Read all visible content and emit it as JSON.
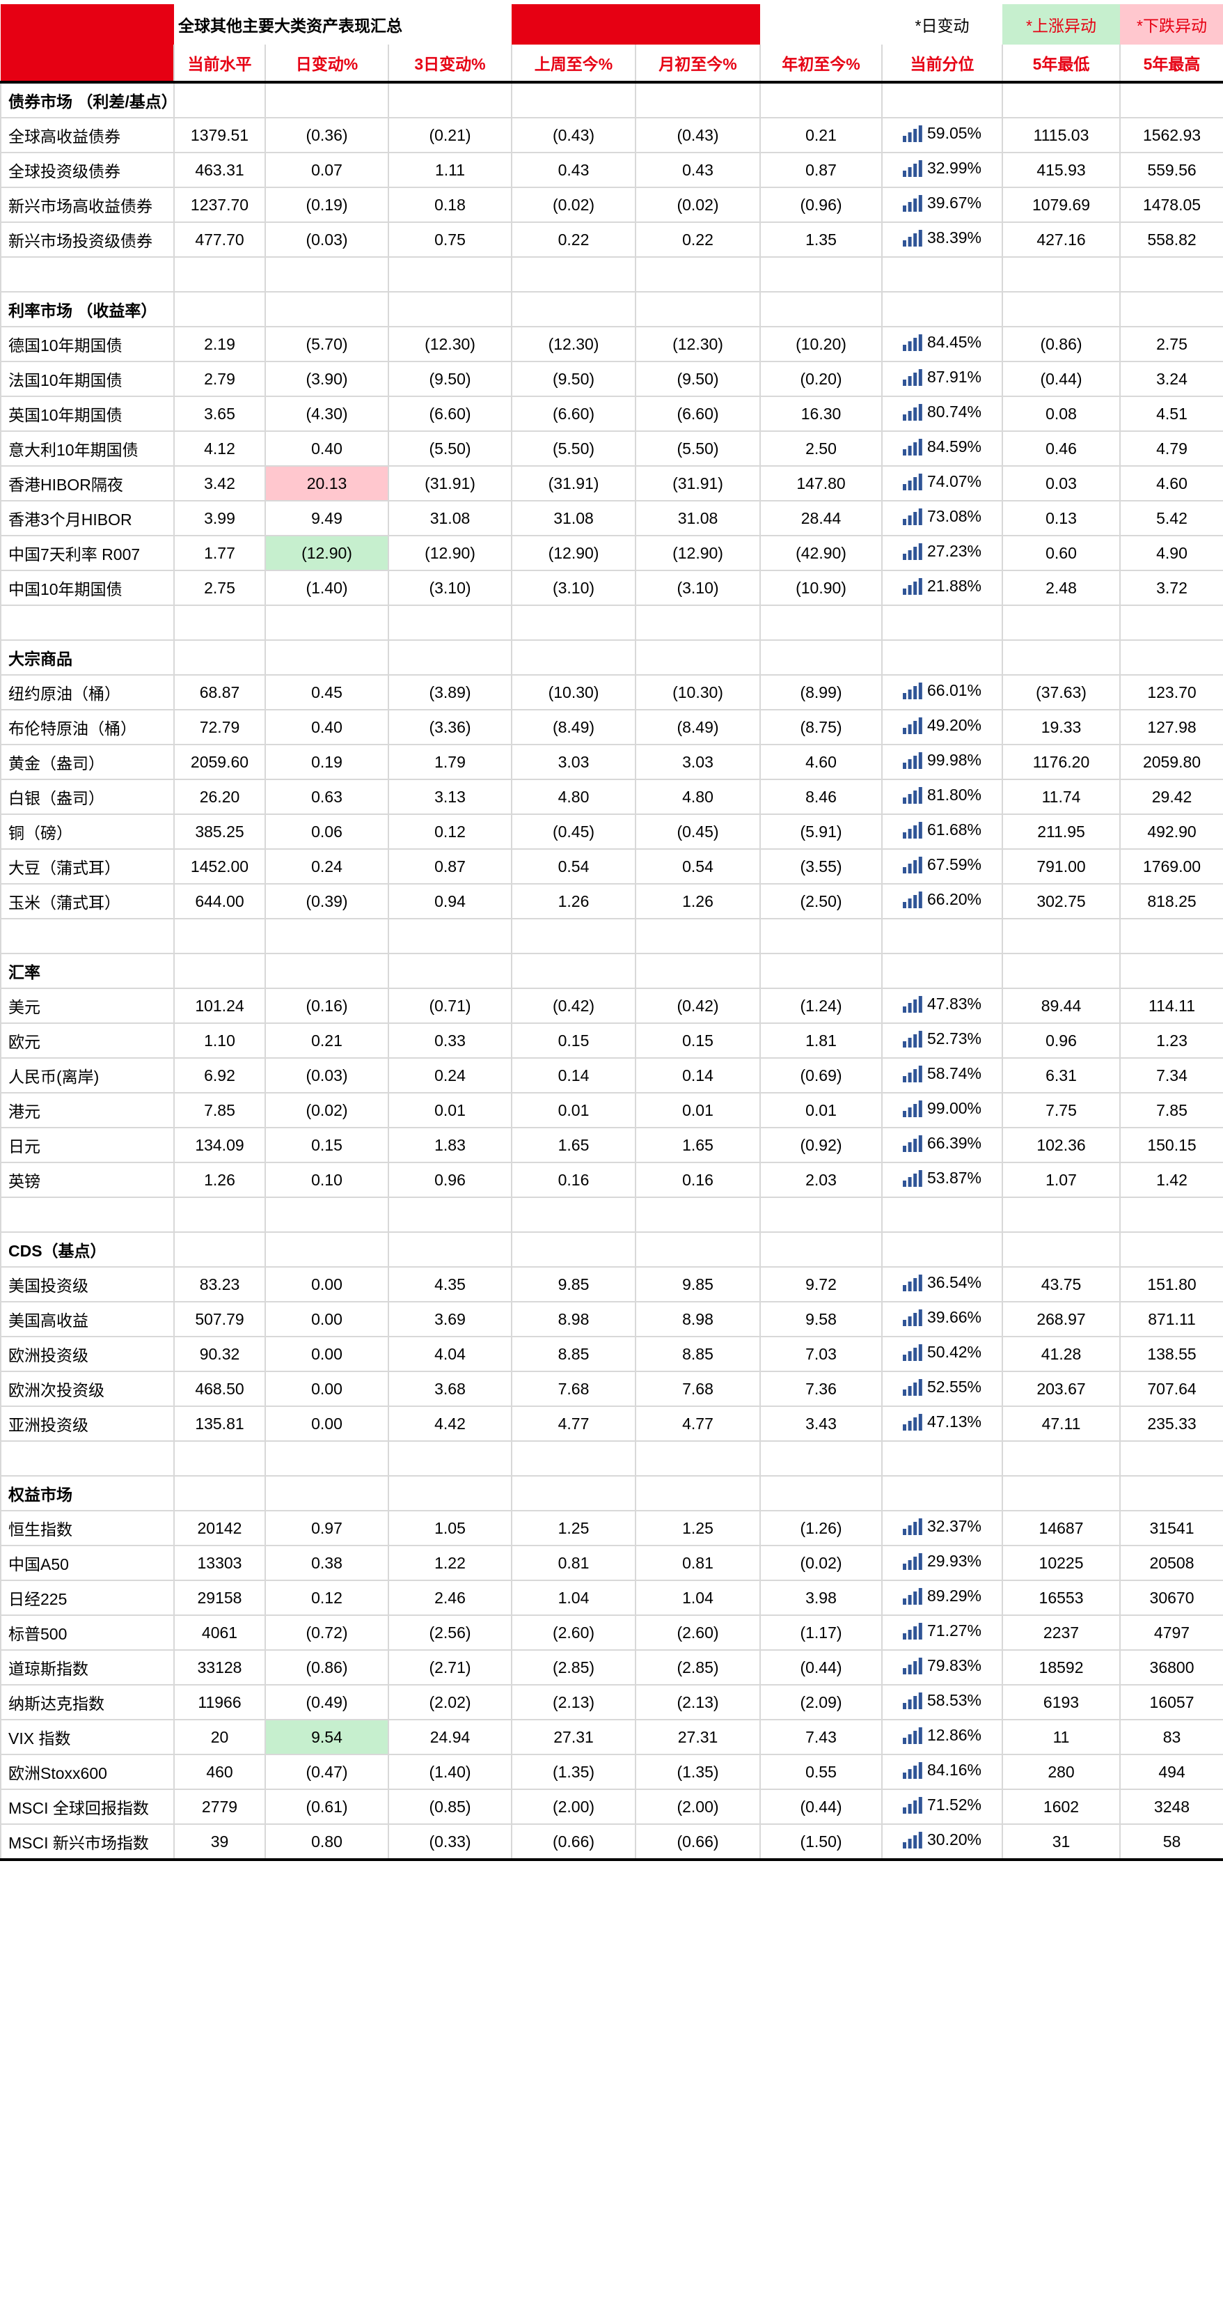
{
  "title": "全球其他主要大类资产表现汇总",
  "legend": {
    "daily_note": "*日变动",
    "up_note": "*上涨异动",
    "down_note": "*下跌异动"
  },
  "columns": [
    "当前水平",
    "日变动%",
    "3日变动%",
    "上周至今%",
    "月初至今%",
    "年初至今%",
    "当前分位",
    "5年最低",
    "5年最高"
  ],
  "colors": {
    "accent_red": "#e60013",
    "up_anomaly_fill": "#c6efce",
    "down_anomaly_fill": "#ffc7ce",
    "percentile_bar_blue": "#2f5496",
    "gridline": "#d8d8d8"
  },
  "icons": {
    "percentile": "ascending-bars-icon"
  },
  "sections": [
    {
      "name": "债券市场 （利差/基点）",
      "rows": [
        {
          "label": "全球高收益债券",
          "values": [
            "1379.51",
            "(0.36)",
            "(0.21)",
            "(0.43)",
            "(0.43)",
            "0.21",
            "59.05%",
            "1115.03",
            "1562.93"
          ]
        },
        {
          "label": "全球投资级债券",
          "values": [
            "463.31",
            "0.07",
            "1.11",
            "0.43",
            "0.43",
            "0.87",
            "32.99%",
            "415.93",
            "559.56"
          ]
        },
        {
          "label": "新兴市场高收益债券",
          "values": [
            "1237.70",
            "(0.19)",
            "0.18",
            "(0.02)",
            "(0.02)",
            "(0.96)",
            "39.67%",
            "1079.69",
            "1478.05"
          ]
        },
        {
          "label": "新兴市场投资级债券",
          "values": [
            "477.70",
            "(0.03)",
            "0.75",
            "0.22",
            "0.22",
            "1.35",
            "38.39%",
            "427.16",
            "558.82"
          ]
        }
      ]
    },
    {
      "name": "利率市场 （收益率）",
      "rows": [
        {
          "label": "德国10年期国债",
          "values": [
            "2.19",
            "(5.70)",
            "(12.30)",
            "(12.30)",
            "(12.30)",
            "(10.20)",
            "84.45%",
            "(0.86)",
            "2.75"
          ]
        },
        {
          "label": "法国10年期国债",
          "values": [
            "2.79",
            "(3.90)",
            "(9.50)",
            "(9.50)",
            "(9.50)",
            "(0.20)",
            "87.91%",
            "(0.44)",
            "3.24"
          ]
        },
        {
          "label": "英国10年期国债",
          "values": [
            "3.65",
            "(4.30)",
            "(6.60)",
            "(6.60)",
            "(6.60)",
            "16.30",
            "80.74%",
            "0.08",
            "4.51"
          ]
        },
        {
          "label": "意大利10年期国债",
          "values": [
            "4.12",
            "0.40",
            "(5.50)",
            "(5.50)",
            "(5.50)",
            "2.50",
            "84.59%",
            "0.46",
            "4.79"
          ]
        },
        {
          "label": "香港HIBOR隔夜",
          "values": [
            "3.42",
            "20.13",
            "(31.91)",
            "(31.91)",
            "(31.91)",
            "147.80",
            "74.07%",
            "0.03",
            "4.60"
          ],
          "hl": {
            "1": "down"
          }
        },
        {
          "label": "香港3个月HIBOR",
          "values": [
            "3.99",
            "9.49",
            "31.08",
            "31.08",
            "31.08",
            "28.44",
            "73.08%",
            "0.13",
            "5.42"
          ]
        },
        {
          "label": "中国7天利率 R007",
          "values": [
            "1.77",
            "(12.90)",
            "(12.90)",
            "(12.90)",
            "(12.90)",
            "(42.90)",
            "27.23%",
            "0.60",
            "4.90"
          ],
          "hl": {
            "1": "up"
          }
        },
        {
          "label": "中国10年期国债",
          "values": [
            "2.75",
            "(1.40)",
            "(3.10)",
            "(3.10)",
            "(3.10)",
            "(10.90)",
            "21.88%",
            "2.48",
            "3.72"
          ]
        }
      ]
    },
    {
      "name": "大宗商品",
      "rows": [
        {
          "label": "纽约原油（桶）",
          "values": [
            "68.87",
            "0.45",
            "(3.89)",
            "(10.30)",
            "(10.30)",
            "(8.99)",
            "66.01%",
            "(37.63)",
            "123.70"
          ]
        },
        {
          "label": "布伦特原油（桶）",
          "values": [
            "72.79",
            "0.40",
            "(3.36)",
            "(8.49)",
            "(8.49)",
            "(8.75)",
            "49.20%",
            "19.33",
            "127.98"
          ]
        },
        {
          "label": "黄金（盎司）",
          "values": [
            "2059.60",
            "0.19",
            "1.79",
            "3.03",
            "3.03",
            "4.60",
            "99.98%",
            "1176.20",
            "2059.80"
          ]
        },
        {
          "label": "白银（盎司）",
          "values": [
            "26.20",
            "0.63",
            "3.13",
            "4.80",
            "4.80",
            "8.46",
            "81.80%",
            "11.74",
            "29.42"
          ]
        },
        {
          "label": "铜（磅）",
          "values": [
            "385.25",
            "0.06",
            "0.12",
            "(0.45)",
            "(0.45)",
            "(5.91)",
            "61.68%",
            "211.95",
            "492.90"
          ]
        },
        {
          "label": "大豆（蒲式耳）",
          "values": [
            "1452.00",
            "0.24",
            "0.87",
            "0.54",
            "0.54",
            "(3.55)",
            "67.59%",
            "791.00",
            "1769.00"
          ]
        },
        {
          "label": "玉米（蒲式耳）",
          "values": [
            "644.00",
            "(0.39)",
            "0.94",
            "1.26",
            "1.26",
            "(2.50)",
            "66.20%",
            "302.75",
            "818.25"
          ]
        }
      ]
    },
    {
      "name": "汇率",
      "rows": [
        {
          "label": "美元",
          "values": [
            "101.24",
            "(0.16)",
            "(0.71)",
            "(0.42)",
            "(0.42)",
            "(1.24)",
            "47.83%",
            "89.44",
            "114.11"
          ]
        },
        {
          "label": "欧元",
          "values": [
            "1.10",
            "0.21",
            "0.33",
            "0.15",
            "0.15",
            "1.81",
            "52.73%",
            "0.96",
            "1.23"
          ]
        },
        {
          "label": "人民币(离岸)",
          "values": [
            "6.92",
            "(0.03)",
            "0.24",
            "0.14",
            "0.14",
            "(0.69)",
            "58.74%",
            "6.31",
            "7.34"
          ]
        },
        {
          "label": "港元",
          "values": [
            "7.85",
            "(0.02)",
            "0.01",
            "0.01",
            "0.01",
            "0.01",
            "99.00%",
            "7.75",
            "7.85"
          ]
        },
        {
          "label": "日元",
          "values": [
            "134.09",
            "0.15",
            "1.83",
            "1.65",
            "1.65",
            "(0.92)",
            "66.39%",
            "102.36",
            "150.15"
          ]
        },
        {
          "label": "英镑",
          "values": [
            "1.26",
            "0.10",
            "0.96",
            "0.16",
            "0.16",
            "2.03",
            "53.87%",
            "1.07",
            "1.42"
          ]
        }
      ]
    },
    {
      "name": "CDS（基点）",
      "rows": [
        {
          "label": "美国投资级",
          "values": [
            "83.23",
            "0.00",
            "4.35",
            "9.85",
            "9.85",
            "9.72",
            "36.54%",
            "43.75",
            "151.80"
          ]
        },
        {
          "label": "美国高收益",
          "values": [
            "507.79",
            "0.00",
            "3.69",
            "8.98",
            "8.98",
            "9.58",
            "39.66%",
            "268.97",
            "871.11"
          ]
        },
        {
          "label": "欧洲投资级",
          "values": [
            "90.32",
            "0.00",
            "4.04",
            "8.85",
            "8.85",
            "7.03",
            "50.42%",
            "41.28",
            "138.55"
          ]
        },
        {
          "label": "欧洲次投资级",
          "values": [
            "468.50",
            "0.00",
            "3.68",
            "7.68",
            "7.68",
            "7.36",
            "52.55%",
            "203.67",
            "707.64"
          ]
        },
        {
          "label": "亚洲投资级",
          "values": [
            "135.81",
            "0.00",
            "4.42",
            "4.77",
            "4.77",
            "3.43",
            "47.13%",
            "47.11",
            "235.33"
          ]
        }
      ]
    },
    {
      "name": "权益市场",
      "rows": [
        {
          "label": "恒生指数",
          "values": [
            "20142",
            "0.97",
            "1.05",
            "1.25",
            "1.25",
            "(1.26)",
            "32.37%",
            "14687",
            "31541"
          ]
        },
        {
          "label": "中国A50",
          "values": [
            "13303",
            "0.38",
            "1.22",
            "0.81",
            "0.81",
            "(0.02)",
            "29.93%",
            "10225",
            "20508"
          ]
        },
        {
          "label": "日经225",
          "values": [
            "29158",
            "0.12",
            "2.46",
            "1.04",
            "1.04",
            "3.98",
            "89.29%",
            "16553",
            "30670"
          ]
        },
        {
          "label": "标普500",
          "values": [
            "4061",
            "(0.72)",
            "(2.56)",
            "(2.60)",
            "(2.60)",
            "(1.17)",
            "71.27%",
            "2237",
            "4797"
          ]
        },
        {
          "label": "道琼斯指数",
          "values": [
            "33128",
            "(0.86)",
            "(2.71)",
            "(2.85)",
            "(2.85)",
            "(0.44)",
            "79.83%",
            "18592",
            "36800"
          ]
        },
        {
          "label": "纳斯达克指数",
          "values": [
            "11966",
            "(0.49)",
            "(2.02)",
            "(2.13)",
            "(2.13)",
            "(2.09)",
            "58.53%",
            "6193",
            "16057"
          ]
        },
        {
          "label": "VIX 指数",
          "values": [
            "20",
            "9.54",
            "24.94",
            "27.31",
            "27.31",
            "7.43",
            "12.86%",
            "11",
            "83"
          ],
          "hl": {
            "1": "up"
          }
        },
        {
          "label": "欧洲Stoxx600",
          "values": [
            "460",
            "(0.47)",
            "(1.40)",
            "(1.35)",
            "(1.35)",
            "0.55",
            "84.16%",
            "280",
            "494"
          ]
        },
        {
          "label": "MSCI 全球回报指数",
          "values": [
            "2779",
            "(0.61)",
            "(0.85)",
            "(2.00)",
            "(2.00)",
            "(0.44)",
            "71.52%",
            "1602",
            "3248"
          ]
        },
        {
          "label": "MSCI 新兴市场指数",
          "values": [
            "39",
            "0.80",
            "(0.33)",
            "(0.66)",
            "(0.66)",
            "(1.50)",
            "30.20%",
            "31",
            "58"
          ]
        }
      ]
    }
  ]
}
